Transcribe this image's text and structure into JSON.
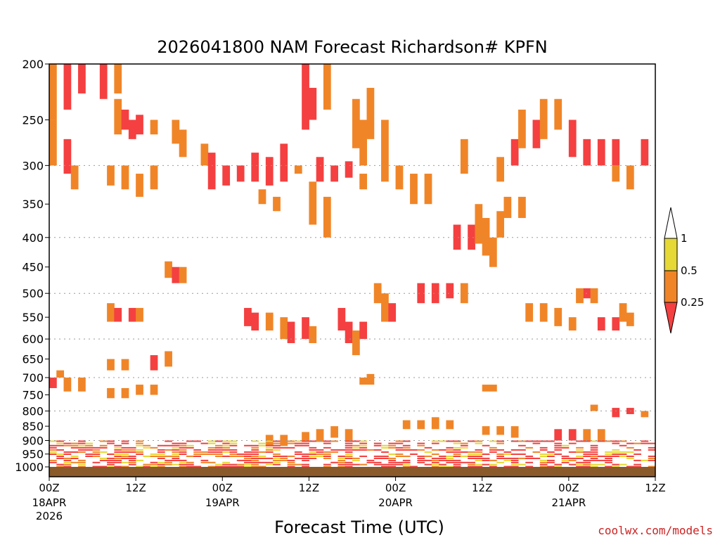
{
  "chart_data": {
    "type": "heatmap",
    "title": "2026041800 NAM Forecast Richardson# KPFN",
    "xlabel": "Forecast Time (UTC)",
    "ylabel": "",
    "x_range_hours": [
      0,
      84
    ],
    "y_range_hpa": [
      200,
      1000
    ],
    "y_scale": "log",
    "y_ticks": [
      200,
      250,
      300,
      350,
      400,
      450,
      500,
      550,
      600,
      650,
      700,
      750,
      800,
      850,
      900,
      950,
      1000
    ],
    "y_gridlines": [
      300,
      400,
      500,
      600,
      700,
      800,
      900
    ],
    "x_ticks": [
      {
        "hour": 0,
        "label": "00Z",
        "sub": [
          "18APR",
          "2026"
        ]
      },
      {
        "hour": 12,
        "label": "12Z",
        "sub": []
      },
      {
        "hour": 24,
        "label": "00Z",
        "sub": [
          "19APR"
        ]
      },
      {
        "hour": 36,
        "label": "12Z",
        "sub": []
      },
      {
        "hour": 48,
        "label": "00Z",
        "sub": [
          "20APR"
        ]
      },
      {
        "hour": 60,
        "label": "12Z",
        "sub": []
      },
      {
        "hour": 72,
        "label": "00Z",
        "sub": [
          "21APR"
        ]
      },
      {
        "hour": 84,
        "label": "12Z",
        "sub": []
      }
    ],
    "legend": {
      "position": "right",
      "levels": [
        {
          "label": "1",
          "color": "#ffffff"
        },
        {
          "label": "0.5",
          "color": "#e6d835"
        },
        {
          "label": "0.25",
          "color": "#f08528"
        },
        {
          "label": "",
          "color": "#f44040"
        }
      ]
    },
    "colors": {
      "low": "#f44040",
      "mid": "#f08528",
      "high": "#e6d835",
      "ground": "#8b5a2b"
    },
    "cells": [
      [
        0,
        200,
        250,
        2
      ],
      [
        2,
        200,
        240,
        3
      ],
      [
        4,
        200,
        225,
        3
      ],
      [
        7,
        200,
        230,
        3
      ],
      [
        9,
        200,
        225,
        2
      ],
      [
        0,
        250,
        300,
        2
      ],
      [
        2,
        270,
        310,
        3
      ],
      [
        3,
        300,
        330,
        2
      ],
      [
        9,
        230,
        265,
        2
      ],
      [
        10,
        240,
        260,
        3
      ],
      [
        11,
        250,
        270,
        3
      ],
      [
        12,
        245,
        265,
        3
      ],
      [
        14,
        250,
        265,
        2
      ],
      [
        17,
        250,
        275,
        2
      ],
      [
        18,
        260,
        290,
        2
      ],
      [
        21,
        275,
        300,
        2
      ],
      [
        22,
        285,
        330,
        3
      ],
      [
        24,
        300,
        325,
        3
      ],
      [
        26,
        300,
        320,
        3
      ],
      [
        28,
        285,
        320,
        3
      ],
      [
        30,
        290,
        325,
        3
      ],
      [
        32,
        275,
        320,
        3
      ],
      [
        34,
        300,
        310,
        2
      ],
      [
        35,
        200,
        260,
        3
      ],
      [
        36,
        220,
        250,
        3
      ],
      [
        38,
        200,
        240,
        2
      ],
      [
        37,
        290,
        320,
        3
      ],
      [
        39,
        300,
        320,
        3
      ],
      [
        41,
        295,
        315,
        3
      ],
      [
        43,
        310,
        330,
        2
      ],
      [
        8,
        300,
        325,
        2
      ],
      [
        10,
        300,
        330,
        2
      ],
      [
        12,
        310,
        340,
        2
      ],
      [
        14,
        300,
        330,
        2
      ],
      [
        29,
        330,
        350,
        2
      ],
      [
        31,
        340,
        360,
        2
      ],
      [
        36,
        320,
        380,
        2
      ],
      [
        38,
        340,
        400,
        2
      ],
      [
        42,
        230,
        280,
        2
      ],
      [
        43,
        250,
        300,
        2
      ],
      [
        44,
        220,
        270,
        2
      ],
      [
        46,
        250,
        320,
        2
      ],
      [
        48,
        300,
        330,
        2
      ],
      [
        50,
        310,
        350,
        2
      ],
      [
        52,
        310,
        350,
        2
      ],
      [
        56,
        380,
        420,
        3
      ],
      [
        58,
        380,
        420,
        3
      ],
      [
        60,
        370,
        430,
        2
      ],
      [
        62,
        360,
        400,
        2
      ],
      [
        55,
        480,
        510,
        3
      ],
      [
        53,
        480,
        520,
        3
      ],
      [
        51,
        480,
        520,
        3
      ],
      [
        57,
        480,
        520,
        2
      ],
      [
        59,
        350,
        410,
        2
      ],
      [
        61,
        400,
        450,
        2
      ],
      [
        57,
        270,
        310,
        2
      ],
      [
        62,
        290,
        320,
        2
      ],
      [
        64,
        270,
        300,
        3
      ],
      [
        65,
        240,
        280,
        2
      ],
      [
        67,
        250,
        280,
        3
      ],
      [
        68,
        230,
        270,
        2
      ],
      [
        70,
        230,
        260,
        2
      ],
      [
        72,
        250,
        290,
        3
      ],
      [
        74,
        270,
        300,
        3
      ],
      [
        76,
        270,
        300,
        3
      ],
      [
        78,
        270,
        300,
        3
      ],
      [
        82,
        270,
        300,
        3
      ],
      [
        78,
        300,
        320,
        2
      ],
      [
        80,
        300,
        330,
        2
      ],
      [
        63,
        340,
        370,
        2
      ],
      [
        65,
        340,
        370,
        2
      ],
      [
        66,
        520,
        560,
        2
      ],
      [
        68,
        520,
        560,
        2
      ],
      [
        70,
        530,
        570,
        2
      ],
      [
        72,
        550,
        580,
        2
      ],
      [
        74,
        490,
        510,
        3
      ],
      [
        75,
        490,
        520,
        2
      ],
      [
        73,
        490,
        520,
        2
      ],
      [
        76,
        550,
        580,
        3
      ],
      [
        78,
        550,
        580,
        3
      ],
      [
        80,
        540,
        570,
        2
      ],
      [
        79,
        520,
        560,
        2
      ],
      [
        75,
        780,
        800,
        2
      ],
      [
        78,
        790,
        820,
        3
      ],
      [
        80,
        790,
        810,
        3
      ],
      [
        82,
        800,
        820,
        2
      ],
      [
        16,
        440,
        470,
        2
      ],
      [
        17,
        450,
        480,
        3
      ],
      [
        18,
        450,
        480,
        2
      ],
      [
        8,
        520,
        560,
        2
      ],
      [
        9,
        530,
        560,
        3
      ],
      [
        11,
        530,
        560,
        3
      ],
      [
        12,
        530,
        560,
        2
      ],
      [
        27,
        530,
        570,
        3
      ],
      [
        28,
        540,
        580,
        3
      ],
      [
        30,
        540,
        580,
        2
      ],
      [
        32,
        550,
        600,
        2
      ],
      [
        33,
        560,
        610,
        3
      ],
      [
        35,
        550,
        600,
        3
      ],
      [
        36,
        570,
        610,
        2
      ],
      [
        40,
        530,
        580,
        3
      ],
      [
        41,
        560,
        610,
        3
      ],
      [
        42,
        580,
        640,
        2
      ],
      [
        43,
        560,
        600,
        3
      ],
      [
        45,
        480,
        520,
        2
      ],
      [
        46,
        500,
        560,
        2
      ],
      [
        47,
        520,
        560,
        3
      ],
      [
        14,
        640,
        680,
        3
      ],
      [
        16,
        630,
        670,
        2
      ],
      [
        8,
        650,
        680,
        2
      ],
      [
        10,
        650,
        680,
        2
      ],
      [
        0,
        700,
        730,
        3
      ],
      [
        2,
        700,
        740,
        2
      ],
      [
        4,
        700,
        740,
        2
      ],
      [
        1,
        680,
        700,
        2
      ],
      [
        8,
        730,
        760,
        2
      ],
      [
        10,
        730,
        760,
        2
      ],
      [
        12,
        720,
        750,
        2
      ],
      [
        14,
        720,
        750,
        2
      ],
      [
        43,
        700,
        720,
        2
      ],
      [
        44,
        690,
        720,
        2
      ],
      [
        60,
        720,
        740,
        2
      ],
      [
        61,
        720,
        740,
        2
      ],
      [
        49,
        830,
        860,
        2
      ],
      [
        51,
        830,
        860,
        2
      ],
      [
        53,
        820,
        860,
        2
      ],
      [
        55,
        830,
        860,
        2
      ],
      [
        60,
        850,
        880,
        2
      ],
      [
        62,
        850,
        880,
        2
      ],
      [
        64,
        850,
        890,
        2
      ],
      [
        70,
        860,
        900,
        3
      ],
      [
        72,
        860,
        900,
        3
      ],
      [
        74,
        860,
        900,
        2
      ],
      [
        76,
        860,
        900,
        2
      ],
      [
        35,
        870,
        900,
        2
      ],
      [
        37,
        860,
        900,
        2
      ],
      [
        39,
        850,
        890,
        2
      ],
      [
        41,
        860,
        900,
        2
      ],
      [
        30,
        880,
        920,
        2
      ],
      [
        32,
        880,
        920,
        2
      ]
    ],
    "cell_colors": {
      "1": "#e6d835",
      "2": "#f08528",
      "3": "#f44040"
    },
    "noise_seed": 7
  },
  "credit": "coolwx.com/models"
}
